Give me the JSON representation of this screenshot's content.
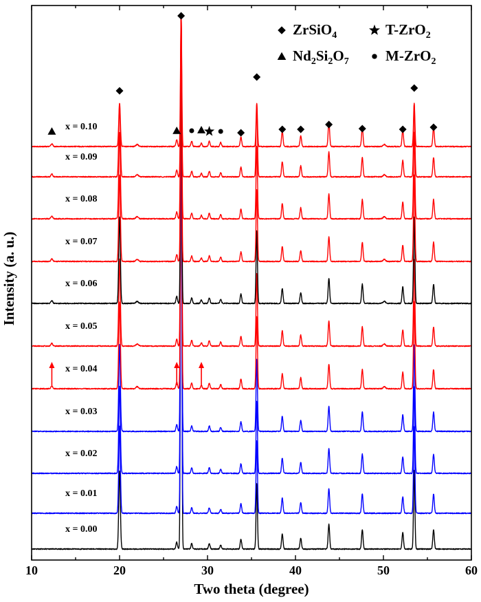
{
  "chart_data": {
    "type": "line",
    "xlabel": "Two theta (degree)",
    "ylabel": "Intensity (a. u.)",
    "xlim": [
      10,
      60
    ],
    "xticks": [
      "10",
      "20",
      "30",
      "40",
      "50",
      "60"
    ],
    "grid": false,
    "colors": {
      "black": "#000000",
      "red": "#ff0000",
      "blue": "#0000ff"
    },
    "series": [
      {
        "name": "x = 0.00",
        "color": "black"
      },
      {
        "name": "x = 0.01",
        "color": "blue"
      },
      {
        "name": "x = 0.02",
        "color": "blue"
      },
      {
        "name": "x = 0.03",
        "color": "blue"
      },
      {
        "name": "x = 0.04",
        "color": "red"
      },
      {
        "name": "x = 0.05",
        "color": "red"
      },
      {
        "name": "x = 0.06",
        "color": "black"
      },
      {
        "name": "x = 0.07",
        "color": "red"
      },
      {
        "name": "x = 0.08",
        "color": "red"
      },
      {
        "name": "x = 0.09",
        "color": "red"
      },
      {
        "name": "x = 0.10",
        "color": "red"
      }
    ],
    "peaks_2theta": [
      20.0,
      26.5,
      27.0,
      28.2,
      29.3,
      30.2,
      31.5,
      33.8,
      35.6,
      38.5,
      40.6,
      43.8,
      47.6,
      52.2,
      53.5,
      55.7
    ],
    "phase_markers": [
      {
        "symbol": "triangle",
        "phase": "Nd2Si2O7",
        "x": [
          12.3,
          26.5,
          29.3
        ]
      },
      {
        "symbol": "diamond",
        "phase": "ZrSiO4",
        "x": [
          20.0,
          27.0,
          33.8,
          35.6,
          38.5,
          40.6,
          43.8,
          47.6,
          52.2,
          53.5,
          55.7
        ]
      },
      {
        "symbol": "circle",
        "phase": "M-ZrO2",
        "x": [
          28.2,
          31.5
        ]
      },
      {
        "symbol": "star",
        "phase": "T-ZrO2",
        "x": [
          30.2
        ]
      }
    ],
    "arrows_on": "x = 0.04",
    "arrow_x": [
      12.3,
      26.5,
      29.3
    ],
    "legend": {
      "position": "top-right",
      "items": [
        {
          "symbol": "diamond",
          "main": "ZrSiO",
          "sub": "4",
          "tail": ""
        },
        {
          "symbol": "star",
          "main": "T-ZrO",
          "sub": "2",
          "tail": ""
        },
        {
          "symbol": "triangle",
          "main": "Nd",
          "sub": "2",
          "tail": "Si",
          "sub2": "2",
          "tail2": "O",
          "sub3": "7"
        },
        {
          "symbol": "circle",
          "main": "M-ZrO",
          "sub": "2",
          "tail": ""
        }
      ]
    }
  }
}
